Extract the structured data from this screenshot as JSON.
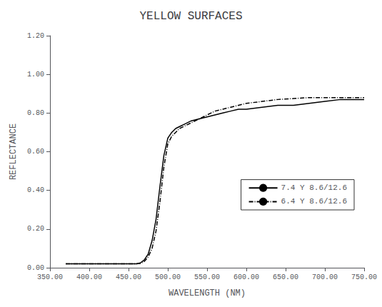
{
  "chart_data": {
    "type": "line",
    "title": "YELLOW SURFACES",
    "xlabel": "WAVELENGTH (NM)",
    "ylabel": "REFLECTANCE",
    "x": [
      370,
      380,
      390,
      400,
      410,
      420,
      430,
      440,
      450,
      460,
      465,
      470,
      475,
      480,
      485,
      490,
      495,
      500,
      505,
      510,
      515,
      520,
      530,
      540,
      550,
      560,
      570,
      580,
      590,
      600,
      620,
      640,
      660,
      680,
      700,
      720,
      740,
      750
    ],
    "series": [
      {
        "name": "7.4 Y 8.6/12.6",
        "color": "#000000",
        "line_style": "solid",
        "values": [
          0.02,
          0.02,
          0.02,
          0.02,
          0.02,
          0.02,
          0.02,
          0.02,
          0.02,
          0.02,
          0.025,
          0.04,
          0.07,
          0.14,
          0.25,
          0.42,
          0.58,
          0.67,
          0.7,
          0.72,
          0.73,
          0.74,
          0.76,
          0.77,
          0.78,
          0.79,
          0.8,
          0.81,
          0.82,
          0.82,
          0.83,
          0.84,
          0.84,
          0.85,
          0.86,
          0.87,
          0.87,
          0.87
        ]
      },
      {
        "name": "6.4 Y 8.6/12.6",
        "color": "#000000",
        "line_style": "dashdot",
        "values": [
          0.02,
          0.02,
          0.02,
          0.02,
          0.02,
          0.02,
          0.02,
          0.02,
          0.02,
          0.02,
          0.022,
          0.032,
          0.055,
          0.1,
          0.19,
          0.34,
          0.52,
          0.64,
          0.68,
          0.7,
          0.72,
          0.73,
          0.75,
          0.77,
          0.79,
          0.81,
          0.82,
          0.83,
          0.84,
          0.85,
          0.86,
          0.87,
          0.875,
          0.88,
          0.88,
          0.88,
          0.88,
          0.88
        ]
      }
    ],
    "xlim": [
      350,
      750
    ],
    "ylim": [
      0.0,
      1.2
    ],
    "xticks": [
      {
        "value": 350,
        "label": "350.00"
      },
      {
        "value": 400,
        "label": "400.00"
      },
      {
        "value": 450,
        "label": "450.00"
      },
      {
        "value": 500,
        "label": "500.00"
      },
      {
        "value": 550,
        "label": "550.00"
      },
      {
        "value": 600,
        "label": "600.00"
      },
      {
        "value": 650,
        "label": "650.00"
      },
      {
        "value": 700,
        "label": "700.00"
      },
      {
        "value": 750,
        "label": "750.00"
      }
    ],
    "yticks": [
      {
        "value": 0.0,
        "label": "0.00"
      },
      {
        "value": 0.2,
        "label": "0.20"
      },
      {
        "value": 0.4,
        "label": "0.40"
      },
      {
        "value": 0.6,
        "label": "0.60"
      },
      {
        "value": 0.8,
        "label": "0.80"
      },
      {
        "value": 1.0,
        "label": "1.00"
      },
      {
        "value": 1.2,
        "label": "1.20"
      }
    ],
    "grid": false,
    "legend": "lower right"
  }
}
